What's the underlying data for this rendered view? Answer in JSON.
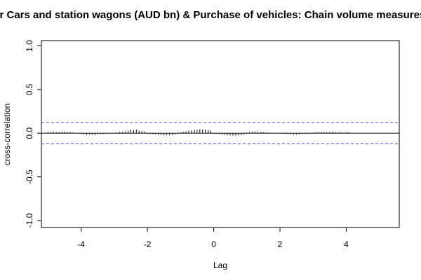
{
  "chart_data": {
    "type": "bar",
    "title": "Motor Cars and station wagons (AUD bn) & Purchase of vehicles: Chain volume measures",
    "xlabel": "Lag",
    "ylabel": "cross-correlation",
    "xlim": [
      -5.2,
      5.6
    ],
    "ylim": [
      -1.08,
      1.06
    ],
    "x_ticks": [
      -4,
      -2,
      0,
      2,
      4
    ],
    "x_tick_labels": [
      "-4",
      "-2",
      "0",
      "2",
      "4"
    ],
    "y_ticks": [
      -1.0,
      -0.5,
      0.0,
      0.5,
      1.0
    ],
    "y_tick_labels": [
      "-1.0",
      "-0.5",
      "0.0",
      "0.5",
      "1.0"
    ],
    "confidence_limit": 0.12,
    "colors": {
      "bars": "#000000",
      "confidence": "#4444dd",
      "zero_line": "#000000"
    },
    "lag_step": 0.0833,
    "lag_start": -5.0,
    "values": [
      0.01,
      0.012,
      0.015,
      0.01,
      0.012,
      0.015,
      0.018,
      0.01,
      0.012,
      0.008,
      0.005,
      -0.005,
      -0.01,
      -0.015,
      -0.02,
      -0.015,
      -0.018,
      -0.02,
      -0.015,
      -0.012,
      -0.01,
      -0.008,
      -0.005,
      -0.003,
      0.005,
      0.008,
      0.012,
      0.015,
      0.02,
      0.03,
      0.04,
      0.035,
      0.042,
      0.03,
      0.025,
      0.018,
      -0.008,
      -0.01,
      -0.012,
      -0.015,
      -0.018,
      -0.02,
      -0.025,
      -0.022,
      -0.02,
      -0.018,
      -0.015,
      -0.01,
      0.01,
      0.015,
      0.02,
      0.028,
      0.032,
      0.038,
      0.04,
      0.045,
      0.042,
      0.04,
      0.035,
      0.028,
      -0.005,
      -0.008,
      -0.012,
      -0.015,
      -0.018,
      -0.022,
      -0.025,
      -0.028,
      -0.03,
      -0.025,
      -0.02,
      -0.015,
      0.008,
      0.012,
      0.015,
      0.018,
      0.015,
      0.012,
      0.01,
      0.008,
      0.006,
      0.005,
      0.004,
      0.003,
      -0.005,
      -0.008,
      -0.01,
      -0.012,
      -0.015,
      -0.018,
      -0.015,
      -0.012,
      -0.01,
      -0.008,
      -0.006,
      -0.004,
      0.008,
      0.01,
      0.012,
      0.015,
      0.012,
      0.01,
      0.012,
      0.015,
      0.012,
      0.01,
      0.008,
      0.006,
      0.01,
      0.012
    ]
  }
}
